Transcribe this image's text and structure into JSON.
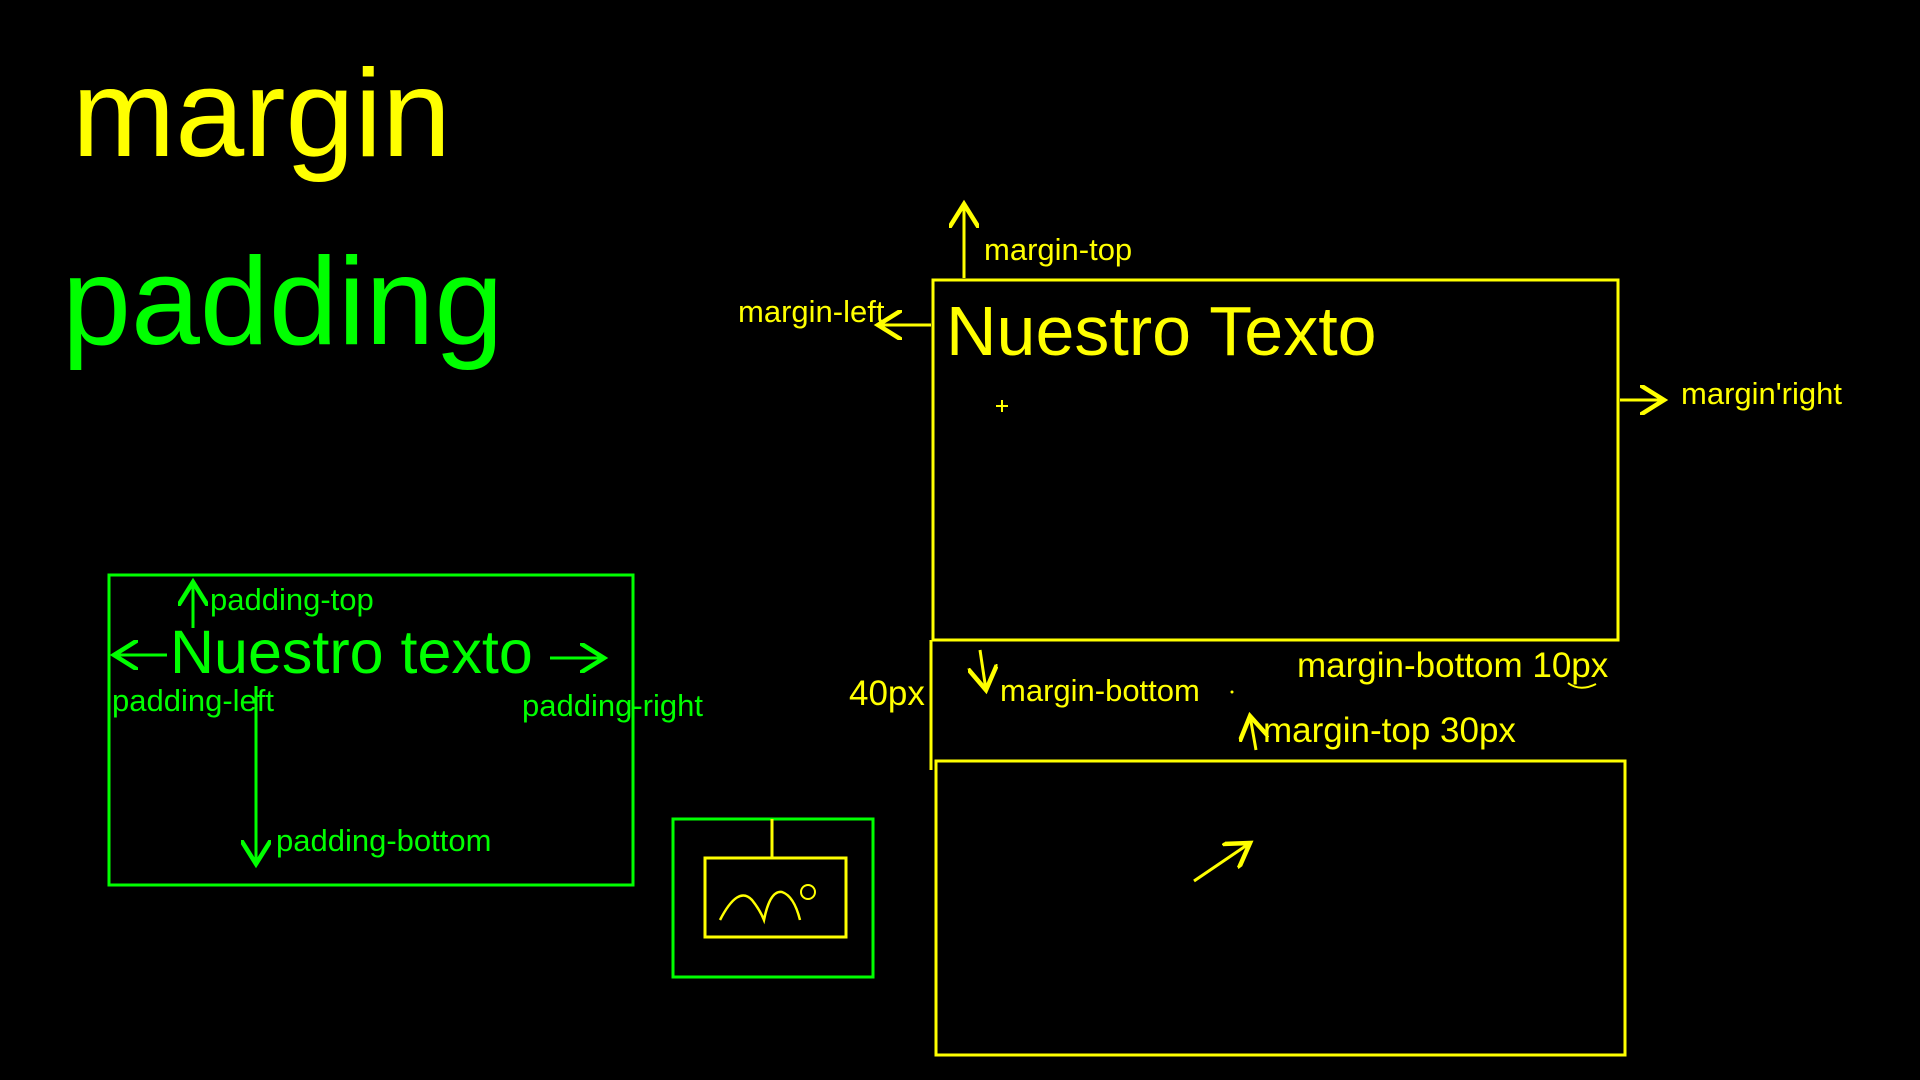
{
  "titles": {
    "margin": "margin",
    "padding": "padding"
  },
  "margin_diagram": {
    "box_text": "Nuestro Texto",
    "margin_top": "margin-top",
    "margin_left": "margin-left",
    "margin_right": "margin'right",
    "gap_label": "40px",
    "margin_bottom": "margin-bottom",
    "margin_bottom_value": "margin-bottom 10px",
    "margin_top_value": "margin-top 30px"
  },
  "padding_diagram": {
    "box_text": "Nuestro texto",
    "padding_top": "padding-top",
    "padding_left": "padding-left",
    "padding_right": "padding-right",
    "padding_bottom": "padding-bottom"
  },
  "colors": {
    "margin": "#ffff00",
    "padding": "#00ff00",
    "background": "#000000"
  }
}
